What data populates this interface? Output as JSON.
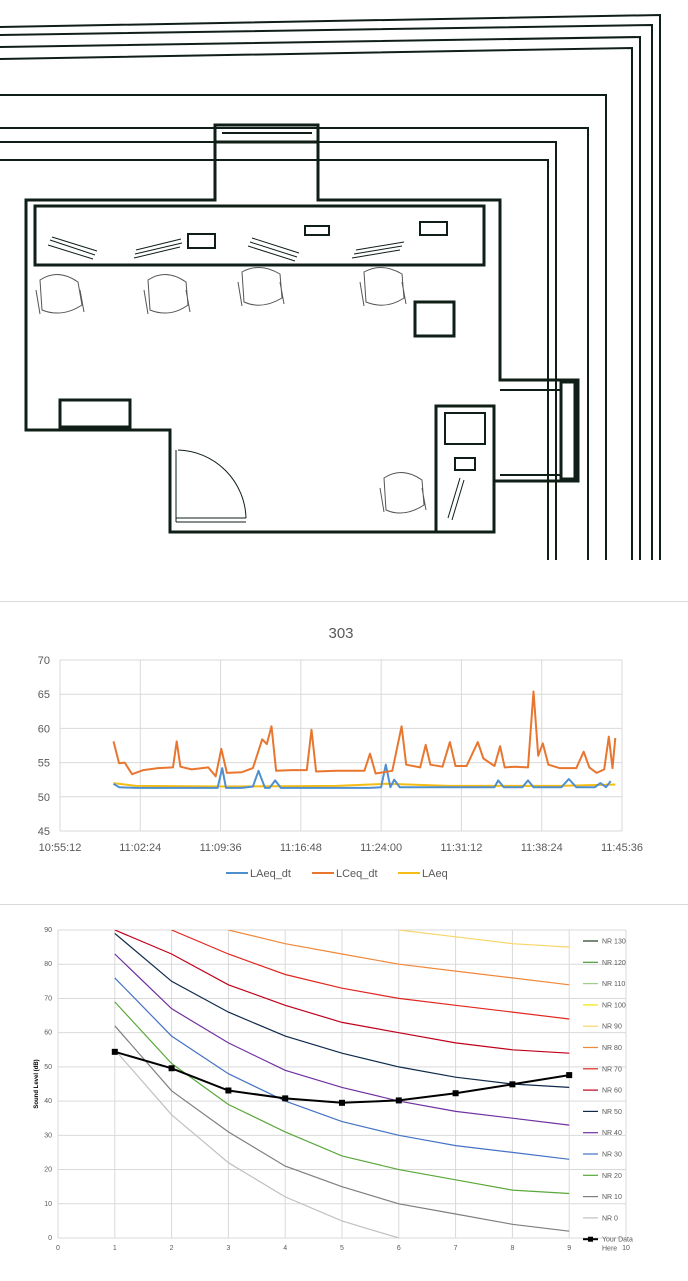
{
  "floor_plan": {
    "wall_color": "#0f1f17"
  },
  "chart_data": [
    {
      "type": "line",
      "title": "303",
      "xlabel": "",
      "ylabel": "",
      "ylim": [
        45,
        70
      ],
      "yticks": [
        "70",
        "65",
        "60",
        "55",
        "50",
        "45"
      ],
      "xticks": [
        "10:55:12",
        "11:02:24",
        "11:09:36",
        "11:16:48",
        "11:24:00",
        "11:31:12",
        "11:38:24",
        "11:45:36"
      ],
      "grid": true,
      "legend": "bottom",
      "series": [
        {
          "name": "LAeq_dt",
          "color": "#4e8fce",
          "points": [
            [
              "11:00:00",
              51.9
            ],
            [
              "11:00:30",
              51.4
            ],
            [
              "11:02:00",
              51.3
            ],
            [
              "11:05:00",
              51.3
            ],
            [
              "11:08:00",
              51.3
            ],
            [
              "11:09:00",
              51.3
            ],
            [
              "11:09:20",
              51.3
            ],
            [
              "11:09:45",
              54.2
            ],
            [
              "11:10:05",
              51.3
            ],
            [
              "11:11:30",
              51.3
            ],
            [
              "11:12:30",
              51.5
            ],
            [
              "11:13:00",
              53.8
            ],
            [
              "11:13:35",
              51.3
            ],
            [
              "11:14:00",
              51.3
            ],
            [
              "11:14:30",
              52.4
            ],
            [
              "11:15:00",
              51.3
            ],
            [
              "11:20:00",
              51.3
            ],
            [
              "11:23:00",
              51.3
            ],
            [
              "11:24:00",
              51.4
            ],
            [
              "11:24:25",
              54.7
            ],
            [
              "11:24:50",
              51.4
            ],
            [
              "11:25:10",
              52.5
            ],
            [
              "11:25:40",
              51.4
            ],
            [
              "11:29:00",
              51.4
            ],
            [
              "11:33:00",
              51.4
            ],
            [
              "11:34:10",
              51.4
            ],
            [
              "11:34:30",
              52.4
            ],
            [
              "11:35:00",
              51.4
            ],
            [
              "11:36:40",
              51.4
            ],
            [
              "11:37:10",
              52.4
            ],
            [
              "11:37:40",
              51.4
            ],
            [
              "11:40:10",
              51.4
            ],
            [
              "11:40:50",
              52.6
            ],
            [
              "11:41:30",
              51.4
            ],
            [
              "11:43:10",
              51.4
            ],
            [
              "11:43:40",
              52.0
            ],
            [
              "11:44:10",
              51.4
            ],
            [
              "11:44:35",
              52.3
            ]
          ]
        },
        {
          "name": "LCeq_dt",
          "color": "#e8762f",
          "points": [
            [
              "11:00:00",
              58.1
            ],
            [
              "11:00:30",
              54.9
            ],
            [
              "11:01:00",
              55.0
            ],
            [
              "11:01:40",
              53.3
            ],
            [
              "11:02:40",
              53.9
            ],
            [
              "11:04:00",
              54.2
            ],
            [
              "11:05:20",
              54.3
            ],
            [
              "11:05:40",
              58.1
            ],
            [
              "11:06:00",
              54.4
            ],
            [
              "11:07:00",
              54.0
            ],
            [
              "11:08:30",
              54.3
            ],
            [
              "11:09:10",
              53.0
            ],
            [
              "11:09:40",
              57.0
            ],
            [
              "11:10:10",
              53.5
            ],
            [
              "11:11:30",
              53.6
            ],
            [
              "11:12:30",
              54.2
            ],
            [
              "11:13:20",
              58.4
            ],
            [
              "11:13:45",
              57.7
            ],
            [
              "11:14:10",
              60.3
            ],
            [
              "11:14:35",
              53.8
            ],
            [
              "11:16:00",
              53.9
            ],
            [
              "11:17:20",
              53.9
            ],
            [
              "11:17:45",
              59.8
            ],
            [
              "11:18:10",
              53.7
            ],
            [
              "11:20:00",
              53.8
            ],
            [
              "11:22:00",
              53.8
            ],
            [
              "11:22:30",
              53.8
            ],
            [
              "11:23:00",
              56.3
            ],
            [
              "11:23:30",
              53.4
            ],
            [
              "11:25:00",
              53.8
            ],
            [
              "11:25:50",
              60.3
            ],
            [
              "11:26:15",
              54.7
            ],
            [
              "11:27:30",
              54.3
            ],
            [
              "11:28:00",
              57.6
            ],
            [
              "11:28:25",
              54.7
            ],
            [
              "11:29:30",
              54.4
            ],
            [
              "11:30:10",
              58.0
            ],
            [
              "11:30:40",
              54.5
            ],
            [
              "11:31:40",
              54.5
            ],
            [
              "11:32:40",
              58.0
            ],
            [
              "11:33:10",
              55.6
            ],
            [
              "11:34:10",
              54.5
            ],
            [
              "11:34:40",
              57.4
            ],
            [
              "11:35:05",
              54.3
            ],
            [
              "11:36:00",
              54.4
            ],
            [
              "11:37:10",
              54.3
            ],
            [
              "11:37:40",
              65.4
            ],
            [
              "11:38:05",
              56.0
            ],
            [
              "11:38:30",
              57.8
            ],
            [
              "11:39:00",
              54.7
            ],
            [
              "11:40:00",
              54.2
            ],
            [
              "11:41:30",
              54.2
            ],
            [
              "11:42:10",
              56.6
            ],
            [
              "11:42:40",
              54.3
            ],
            [
              "11:43:20",
              53.5
            ],
            [
              "11:44:00",
              54.0
            ],
            [
              "11:44:25",
              58.8
            ],
            [
              "11:44:45",
              54.2
            ],
            [
              "11:45:00",
              58.6
            ]
          ]
        },
        {
          "name": "LAeq",
          "color": "#f5bd14",
          "points": [
            [
              "11:00:00",
              52.0
            ],
            [
              "11:02:00",
              51.6
            ],
            [
              "11:10:00",
              51.5
            ],
            [
              "11:20:00",
              51.6
            ],
            [
              "11:24:30",
              51.9
            ],
            [
              "11:30:00",
              51.6
            ],
            [
              "11:35:00",
              51.6
            ],
            [
              "11:40:00",
              51.6
            ],
            [
              "11:45:00",
              51.8
            ]
          ]
        }
      ]
    },
    {
      "type": "line",
      "title": "",
      "xlabel": "",
      "ylabel": "Sound Level (dB)",
      "xlim": [
        0,
        10
      ],
      "ylim": [
        0,
        90
      ],
      "xticks": [
        "0",
        "1",
        "2",
        "3",
        "4",
        "5",
        "6",
        "7",
        "8",
        "9",
        "10"
      ],
      "yticks": [
        "90",
        "80",
        "70",
        "60",
        "50",
        "40",
        "30",
        "20",
        "10",
        "0"
      ],
      "grid": true,
      "legend": "right",
      "x": [
        1,
        2,
        3,
        4,
        5,
        6,
        7,
        8,
        9
      ],
      "series": [
        {
          "name": "NR 130",
          "color": "#1e3d1e",
          "values": [
            null,
            null,
            null,
            null,
            null,
            null,
            null,
            null,
            null
          ]
        },
        {
          "name": "NR 120",
          "color": "#4a9a3a",
          "values": [
            null,
            null,
            null,
            null,
            null,
            null,
            null,
            null,
            null
          ]
        },
        {
          "name": "NR 110",
          "color": "#9bd08a",
          "values": [
            null,
            null,
            null,
            null,
            null,
            null,
            null,
            null,
            null
          ]
        },
        {
          "name": "NR 100",
          "color": "#f2e600",
          "values": [
            null,
            null,
            null,
            null,
            null,
            null,
            null,
            null,
            null
          ]
        },
        {
          "name": "NR 90",
          "color": "#f8d66a",
          "values": [
            null,
            null,
            null,
            null,
            null,
            90,
            88,
            86,
            85
          ]
        },
        {
          "name": "NR 80",
          "color": "#f0883a",
          "values": [
            null,
            null,
            90,
            86,
            83,
            80,
            78,
            76,
            74
          ]
        },
        {
          "name": "NR 70",
          "color": "#e0261e",
          "values": [
            null,
            90,
            83,
            77,
            73,
            70,
            68,
            66,
            64
          ]
        },
        {
          "name": "NR 60",
          "color": "#c0001a",
          "values": [
            90,
            83,
            74,
            68,
            63,
            60,
            57,
            55,
            54
          ]
        },
        {
          "name": "NR 50",
          "color": "#0e2a4a",
          "values": [
            89,
            75,
            66,
            59,
            54,
            50,
            47,
            45,
            44
          ]
        },
        {
          "name": "NR 40",
          "color": "#7030a0",
          "values": [
            83,
            67,
            57,
            49,
            44,
            40,
            37,
            35,
            33
          ]
        },
        {
          "name": "NR 30",
          "color": "#4472c4",
          "values": [
            76,
            59,
            48,
            40,
            34,
            30,
            27,
            25,
            23
          ]
        },
        {
          "name": "NR 20",
          "color": "#5aa83a",
          "values": [
            69,
            51,
            39,
            31,
            24,
            20,
            17,
            14,
            13
          ]
        },
        {
          "name": "NR 10",
          "color": "#7f7f7f",
          "values": [
            62,
            43,
            31,
            21,
            15,
            10,
            7,
            4,
            2
          ]
        },
        {
          "name": "NR 0",
          "color": "#c0c0c0",
          "values": [
            55,
            36,
            22,
            12,
            5,
            0,
            null,
            null,
            null
          ]
        },
        {
          "name": "Your Data Here",
          "color": "#000000",
          "marker": "square",
          "values": [
            54.4,
            49.6,
            43.1,
            40.8,
            39.5,
            40.2,
            42.3,
            44.9,
            47.6
          ]
        }
      ]
    }
  ]
}
